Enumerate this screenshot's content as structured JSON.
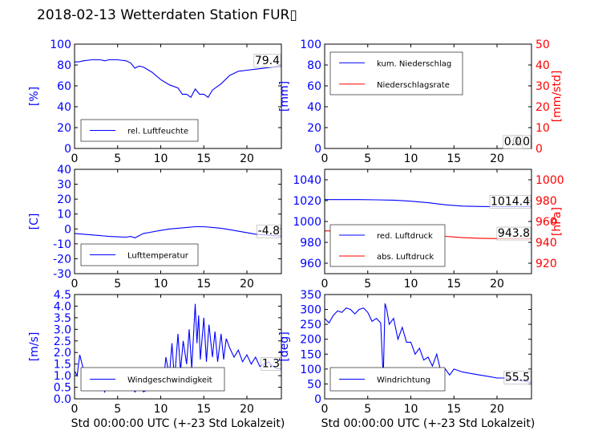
{
  "title": "2018-02-13 Wetterdaten Station FUR▯",
  "chart_data": [
    {
      "type": "line",
      "id": "humidity",
      "xlim": [
        0,
        24
      ],
      "xticks": [
        0,
        5,
        10,
        15,
        20
      ],
      "ylim": [
        0,
        100
      ],
      "yticks": [
        0,
        20,
        40,
        60,
        80,
        100
      ],
      "ylabel": "[%]",
      "xlabel": "",
      "grid": false,
      "legend": "bottom-left",
      "series": [
        {
          "name": "rel. Luftfeuchte",
          "color": "#0000ff",
          "x": [
            0,
            0.5,
            1,
            2,
            3,
            3.5,
            4,
            5,
            6,
            6.5,
            7,
            7.5,
            8,
            9,
            10,
            11,
            12,
            12.5,
            13,
            13.5,
            14,
            14.5,
            15,
            15.5,
            16,
            17,
            18,
            19,
            20,
            21,
            22,
            23,
            24
          ],
          "y": [
            83,
            83,
            84,
            85,
            85,
            84,
            85,
            85,
            84,
            82,
            77,
            79,
            78,
            73,
            66,
            61,
            58,
            52,
            52,
            49,
            57,
            52,
            52,
            49,
            56,
            62,
            70,
            74,
            75,
            76,
            77,
            78,
            79.4
          ]
        }
      ],
      "last_value": "79.4"
    },
    {
      "type": "line",
      "id": "precip",
      "xlim": [
        0,
        24
      ],
      "xticks": [
        0,
        5,
        10,
        15,
        20
      ],
      "ylim": [
        0,
        100
      ],
      "yticks": [
        0,
        20,
        40,
        60,
        80,
        100
      ],
      "ylabel": "[mm]",
      "xlabel": "",
      "y2lim": [
        0,
        50
      ],
      "y2ticks": [
        0,
        10,
        20,
        30,
        40,
        50
      ],
      "y2label": "[mm/std]",
      "grid": false,
      "legend": "top-left",
      "series": [
        {
          "name": "kum. Niederschlag",
          "color": "#0000ff",
          "x": [
            0,
            24
          ],
          "y": [
            0,
            0
          ]
        },
        {
          "name": "Niederschlagsrate",
          "color": "#ff0000",
          "axis": "right",
          "x": [
            0,
            24
          ],
          "y": [
            0,
            0
          ]
        }
      ],
      "last_value": "0.0",
      "last_value_2": "0.0"
    },
    {
      "type": "line",
      "id": "temperature",
      "xlim": [
        0,
        24
      ],
      "xticks": [
        0,
        5,
        10,
        15,
        20
      ],
      "ylim": [
        -30,
        40
      ],
      "yticks": [
        -30,
        -20,
        -10,
        0,
        10,
        20,
        30,
        40
      ],
      "ylabel": "[C]",
      "xlabel": "",
      "grid": false,
      "legend": "bottom-left",
      "series": [
        {
          "name": "Lufttemperatur",
          "color": "#0000ff",
          "x": [
            0,
            1,
            2,
            3,
            4,
            5,
            6,
            6.5,
            7,
            7.5,
            8,
            9,
            10,
            11,
            12,
            13,
            14,
            15,
            16,
            17,
            18,
            19,
            20,
            21,
            22,
            23,
            24
          ],
          "y": [
            -3,
            -3.5,
            -4,
            -4.5,
            -5,
            -5.3,
            -5.5,
            -5,
            -6,
            -4.5,
            -3,
            -2,
            -1,
            0,
            0.5,
            1,
            1.5,
            1.5,
            1,
            0.5,
            -0.5,
            -1.5,
            -2.5,
            -3.5,
            -4,
            -4.5,
            -4.8
          ]
        }
      ],
      "last_value": "-4.8"
    },
    {
      "type": "line",
      "id": "pressure",
      "xlim": [
        0,
        24
      ],
      "xticks": [
        0,
        5,
        10,
        15,
        20
      ],
      "ylim": [
        950,
        1050
      ],
      "yticks": [
        960,
        980,
        1000,
        1020,
        1040
      ],
      "ylabel": "",
      "xlabel": "",
      "y2lim": [
        910,
        1010
      ],
      "y2ticks": [
        920,
        940,
        960,
        980,
        1000
      ],
      "y2label": "[hPa]",
      "grid": false,
      "legend": "bottom-left",
      "series": [
        {
          "name": "red. Luftdruck",
          "color": "#0000ff",
          "x": [
            0,
            2,
            4,
            6,
            8,
            10,
            12,
            14,
            16,
            18,
            20,
            22,
            24
          ],
          "y": [
            1021,
            1021,
            1021,
            1020.8,
            1020.5,
            1019.5,
            1018,
            1016,
            1014.8,
            1014.4,
            1014.2,
            1014.3,
            1014.4
          ]
        },
        {
          "name": "abs. Luftdruck",
          "color": "#ff0000",
          "axis": "right",
          "x": [
            0,
            2,
            4,
            6,
            8,
            10,
            12,
            14,
            16,
            18,
            20,
            22,
            24
          ],
          "y": [
            951,
            950.8,
            950.5,
            950.2,
            949.8,
            948.8,
            947.5,
            945.8,
            944.5,
            943.9,
            943.6,
            943.7,
            943.8
          ]
        }
      ],
      "last_value": "1014.4",
      "last_value_2": "943.8"
    },
    {
      "type": "line",
      "id": "wind_speed",
      "xlim": [
        0,
        24
      ],
      "xticks": [
        0,
        5,
        10,
        15,
        20
      ],
      "ylim": [
        0,
        4.5
      ],
      "yticks": [
        0.0,
        0.5,
        1.0,
        1.5,
        2.0,
        2.5,
        3.0,
        3.5,
        4.0,
        4.5
      ],
      "ylabel": "[m/s]",
      "xlabel": "Std 00:00:00 UTC (+-23 Std Lokalzeit)",
      "grid": false,
      "legend": "bottom-left",
      "series": [
        {
          "name": "Windgeschwindigkeit",
          "color": "#0000ff",
          "x": [
            0,
            0.3,
            0.6,
            1,
            1.5,
            2,
            2.5,
            3,
            3.5,
            4,
            4.5,
            5,
            5.5,
            6,
            6.5,
            7,
            7.5,
            8,
            8.5,
            9,
            9.5,
            10,
            10.3,
            10.6,
            11,
            11.3,
            11.6,
            12,
            12.3,
            12.6,
            13,
            13.3,
            13.6,
            14,
            14.2,
            14.4,
            14.6,
            15,
            15.3,
            15.6,
            16,
            16.3,
            16.6,
            17,
            17.3,
            17.6,
            18,
            18.5,
            19,
            19.5,
            20,
            20.5,
            21,
            21.5,
            22,
            22.5,
            23,
            23.5,
            24
          ],
          "y": [
            1.2,
            1.0,
            1.9,
            1.3,
            0.8,
            0.9,
            0.5,
            0.8,
            0.3,
            0.9,
            0.4,
            0.8,
            0.6,
            0.5,
            0.7,
            0.3,
            0.6,
            0.3,
            0.4,
            0.8,
            0.5,
            1.2,
            0.6,
            1.8,
            1.0,
            2.4,
            0.8,
            2.8,
            1.2,
            2.5,
            1.5,
            3.0,
            1.3,
            4.1,
            2.4,
            3.6,
            1.7,
            3.5,
            1.6,
            3.2,
            1.8,
            2.9,
            1.6,
            2.8,
            1.7,
            2.6,
            2.2,
            1.8,
            2.1,
            1.6,
            1.9,
            1.5,
            1.8,
            1.4,
            1.5,
            1.6,
            1.4,
            1.3,
            1.3
          ]
        }
      ],
      "last_value": "1.3"
    },
    {
      "type": "line",
      "id": "wind_direction",
      "xlim": [
        0,
        24
      ],
      "xticks": [
        0,
        5,
        10,
        15,
        20
      ],
      "ylim": [
        0,
        350
      ],
      "yticks": [
        0,
        50,
        100,
        150,
        200,
        250,
        300,
        350
      ],
      "ylabel": "[deg]",
      "xlabel": "Std 00:00:00 UTC (+-23 Std Lokalzeit)",
      "grid": false,
      "legend": "bottom-left",
      "series": [
        {
          "name": "Windrichtung",
          "color": "#0000ff",
          "x": [
            0,
            0.5,
            1,
            1.5,
            2,
            2.5,
            3,
            3.5,
            4,
            4.5,
            5,
            5.5,
            6,
            6.5,
            6.8,
            7,
            7.2,
            7.5,
            8,
            8.5,
            9,
            9.5,
            10,
            10.5,
            11,
            11.5,
            12,
            12.5,
            13,
            13.5,
            14,
            14.5,
            15,
            16,
            17,
            18,
            19,
            20,
            21,
            22,
            23,
            24
          ],
          "y": [
            270,
            255,
            280,
            295,
            290,
            305,
            300,
            285,
            300,
            305,
            290,
            260,
            270,
            255,
            70,
            320,
            300,
            250,
            270,
            200,
            240,
            190,
            190,
            150,
            170,
            130,
            140,
            110,
            150,
            90,
            100,
            80,
            100,
            90,
            85,
            80,
            75,
            70,
            70,
            65,
            60,
            55.5
          ]
        }
      ],
      "last_value": "55.5"
    }
  ]
}
